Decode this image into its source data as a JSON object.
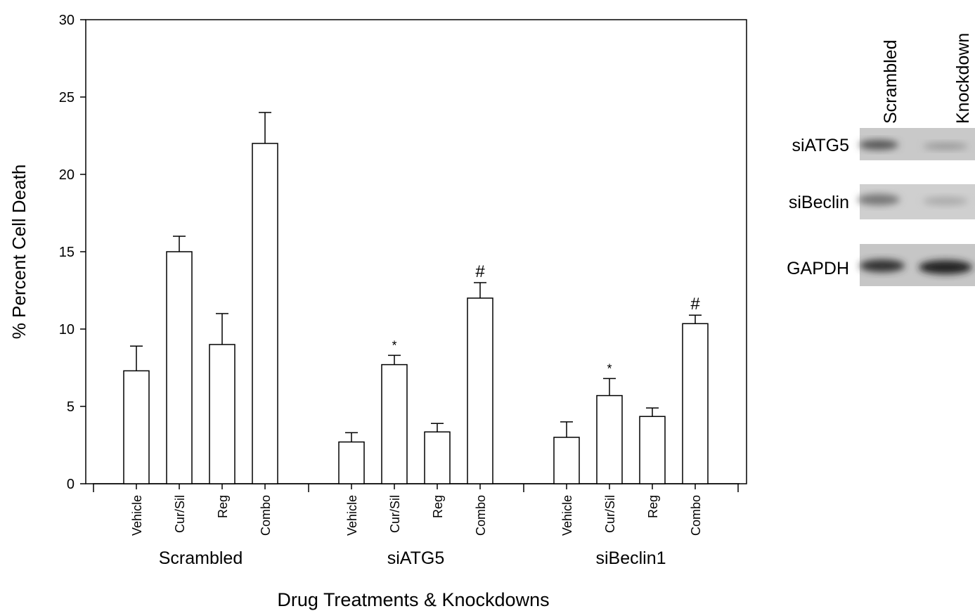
{
  "chart_data": {
    "type": "bar",
    "y_label": "% Percent Cell Death",
    "x_label": "Drug Treatments & Knockdowns",
    "ylim": [
      0,
      30
    ],
    "yticks": [
      0,
      5,
      10,
      15,
      20,
      25,
      30
    ],
    "categories": [
      "Vehicle",
      "Cur/Sil",
      "Reg",
      "Combo"
    ],
    "color": "#ffffff",
    "groups": [
      {
        "name": "Scrambled",
        "values": [
          7.3,
          15,
          9,
          22
        ],
        "errors": [
          1.6,
          1.0,
          2.0,
          2.0
        ],
        "annotations": [
          null,
          null,
          null,
          null
        ]
      },
      {
        "name": "siATG5",
        "values": [
          2.7,
          7.7,
          3.35,
          12
        ],
        "errors": [
          0.6,
          0.6,
          0.55,
          1.0
        ],
        "annotations": [
          null,
          "*",
          null,
          "#"
        ]
      },
      {
        "name": "siBeclin1",
        "values": [
          3.0,
          5.7,
          4.35,
          10.35
        ],
        "errors": [
          1.0,
          1.1,
          0.55,
          0.55
        ],
        "annotations": [
          null,
          "*",
          null,
          "#"
        ]
      }
    ]
  },
  "blot": {
    "columns": [
      "Scrambled",
      "Knockdown"
    ],
    "rows": [
      "siATG5",
      "siBeclin",
      "GAPDH"
    ]
  }
}
